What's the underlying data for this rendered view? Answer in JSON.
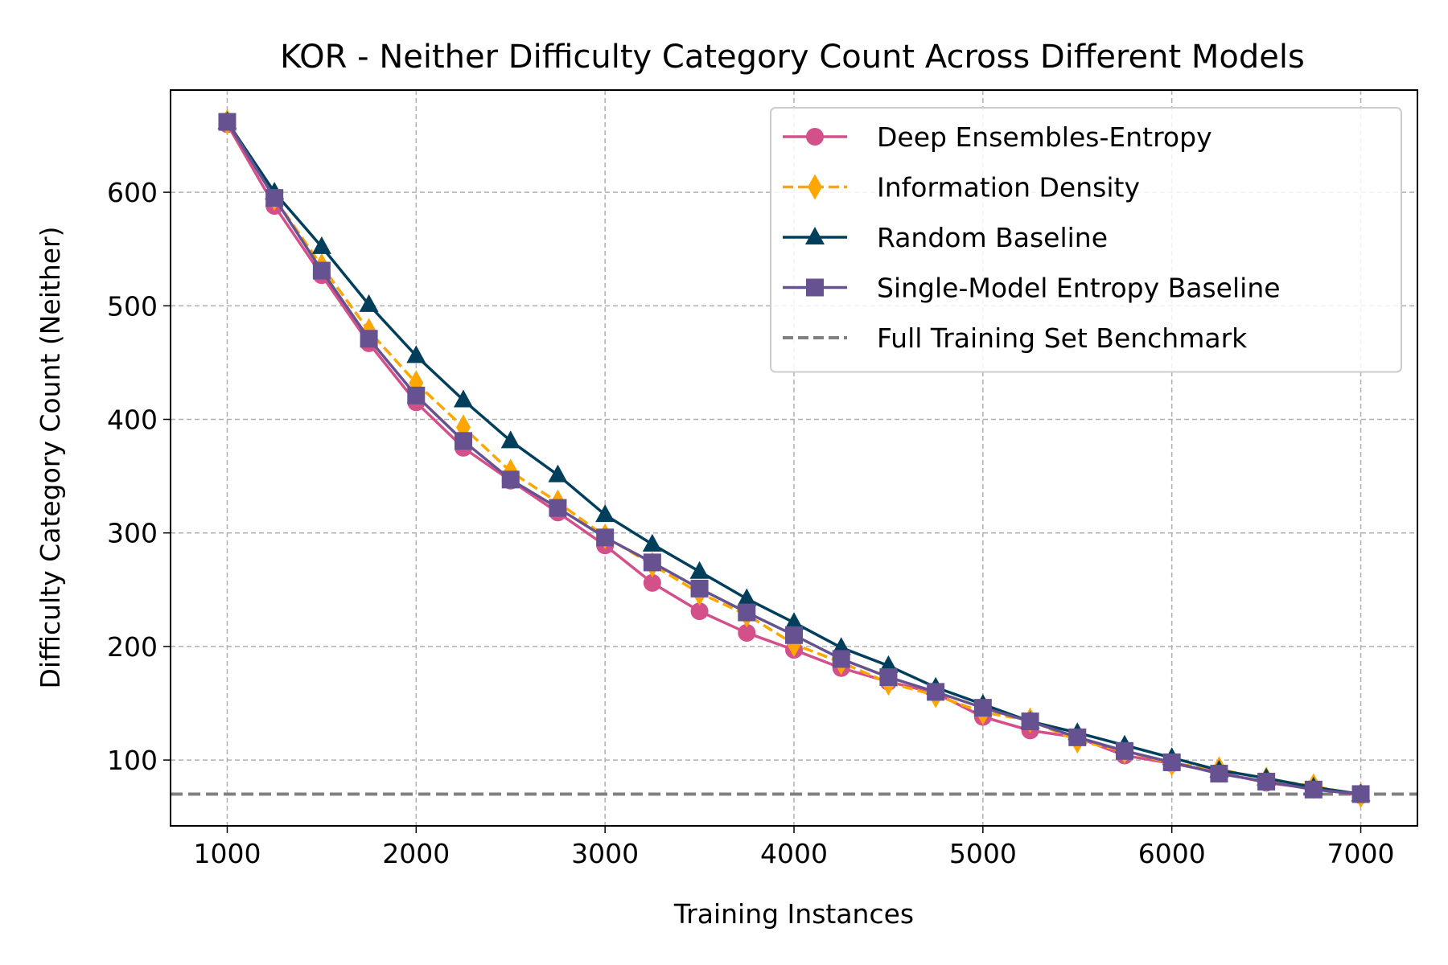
{
  "chart_data": {
    "type": "line",
    "title": "KOR - Neither Difficulty Category Count Across Different Models",
    "xlabel": "Training Instances",
    "ylabel": "Difficulty Category Count (Neither)",
    "xlim": [
      700,
      7300
    ],
    "ylim": [
      42,
      690
    ],
    "xticks": [
      1000,
      2000,
      3000,
      4000,
      5000,
      6000,
      7000
    ],
    "yticks": [
      100,
      200,
      300,
      400,
      500,
      600
    ],
    "grid": true,
    "legend_position": "top-right",
    "x": [
      1000,
      1250,
      1500,
      1750,
      2000,
      2250,
      2500,
      2750,
      3000,
      3250,
      3500,
      3750,
      4000,
      4250,
      4500,
      4750,
      5000,
      5250,
      5500,
      5750,
      6000,
      6250,
      6500,
      6750,
      7000
    ],
    "series": [
      {
        "name": "Deep Ensembles-Entropy",
        "color": "#d4508a",
        "marker": "circle",
        "dash": "solid",
        "values": [
          660,
          588,
          527,
          467,
          415,
          375,
          346,
          318,
          289,
          256,
          231,
          212,
          197,
          181,
          169,
          159,
          138,
          126,
          120,
          104,
          97,
          89,
          80,
          75,
          69
        ]
      },
      {
        "name": "Information Density",
        "color": "#ffa600",
        "marker": "thin_diamond",
        "dash": "dashed",
        "values": [
          662,
          595,
          535,
          478,
          432,
          393,
          354,
          327,
          297,
          272,
          247,
          228,
          202,
          186,
          168,
          157,
          142,
          135,
          117,
          108,
          97,
          92,
          83,
          77,
          69
        ]
      },
      {
        "name": "Random Baseline",
        "color": "#003f5c",
        "marker": "triangle",
        "dash": "solid",
        "values": [
          662,
          600,
          552,
          501,
          456,
          417,
          381,
          351,
          316,
          290,
          266,
          242,
          221,
          199,
          183,
          164,
          149,
          134,
          124,
          113,
          102,
          91,
          84,
          76,
          70
        ]
      },
      {
        "name": "Single-Model Entropy Baseline",
        "color": "#665191",
        "marker": "square",
        "dash": "solid",
        "values": [
          662,
          595,
          531,
          471,
          421,
          381,
          347,
          322,
          296,
          274,
          251,
          230,
          210,
          189,
          173,
          160,
          146,
          134,
          120,
          108,
          98,
          88,
          81,
          74,
          70
        ]
      },
      {
        "name": "Full Training Set Benchmark",
        "color": "#808080",
        "marker": "none",
        "dash": "dashed",
        "hline": 70
      }
    ]
  }
}
